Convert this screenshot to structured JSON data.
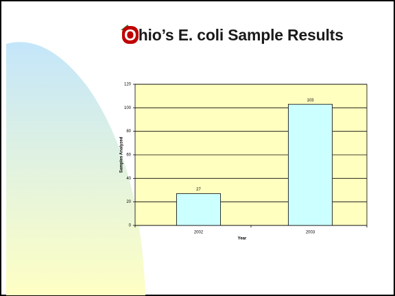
{
  "chart_data": {
    "type": "bar",
    "title": "Ohio’s E. coli Sample Results",
    "categories": [
      "2002",
      "2003"
    ],
    "values": [
      27,
      103
    ],
    "color": "#ccffff",
    "x_label": "Year",
    "y_label": "Samples Analyzed",
    "ylim": [
      0,
      120
    ],
    "yticks": [
      0,
      20,
      40,
      60,
      80,
      100,
      120
    ],
    "grid": true
  }
}
